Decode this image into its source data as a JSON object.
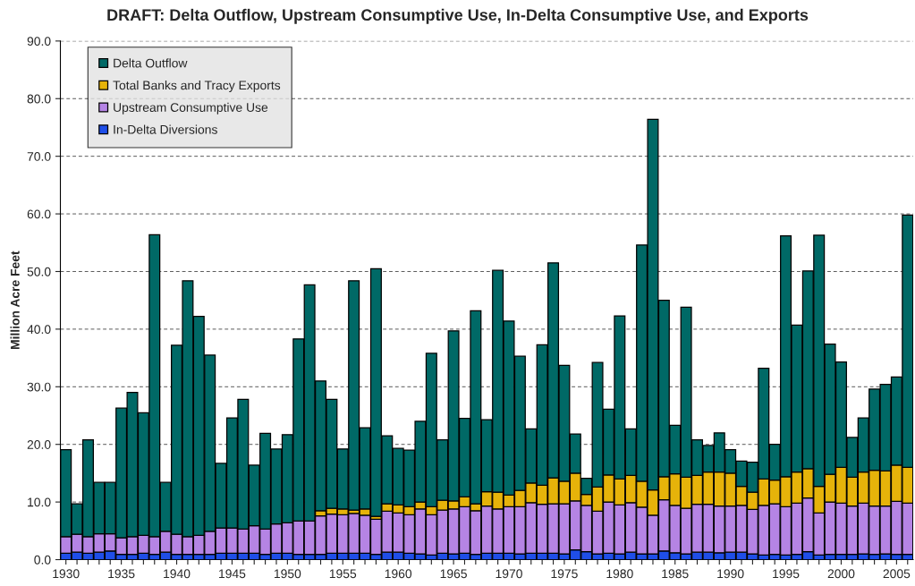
{
  "chart_data": {
    "type": "bar",
    "title": "DRAFT: Delta Outflow, Upstream Consumptive Use, In-Delta Consumptive Use, and Exports",
    "ylabel": "Million Acre Feet",
    "stacked": true,
    "categories": [
      "1930",
      null,
      null,
      null,
      null,
      "1935",
      null,
      null,
      null,
      null,
      "1940",
      null,
      null,
      null,
      null,
      "1945",
      null,
      null,
      null,
      null,
      "1950",
      null,
      null,
      null,
      null,
      "1955",
      null,
      null,
      null,
      null,
      "1960",
      null,
      null,
      null,
      null,
      "1965",
      null,
      null,
      null,
      null,
      "1970",
      null,
      null,
      null,
      null,
      "1975",
      null,
      null,
      null,
      null,
      "1980",
      null,
      null,
      null,
      null,
      "1985",
      null,
      null,
      null,
      null,
      "1990",
      null,
      null,
      null,
      null,
      "1995",
      null,
      null,
      null,
      null,
      "2000",
      null,
      null,
      null,
      null,
      "2005",
      null
    ],
    "series": [
      {
        "name": "In-Delta Diversions",
        "color": "#1f4ee8",
        "values": [
          1.1,
          1.3,
          1.1,
          1.3,
          1.5,
          0.9,
          0.9,
          1.1,
          0.9,
          1.3,
          0.9,
          0.9,
          0.9,
          0.9,
          1.1,
          1.1,
          1.1,
          1.1,
          0.9,
          1.1,
          1.1,
          0.9,
          0.9,
          0.9,
          1.1,
          1.1,
          1.1,
          1.1,
          0.9,
          1.3,
          1.3,
          1.1,
          1.0,
          0.8,
          1.1,
          1.0,
          1.1,
          0.9,
          1.1,
          1.1,
          1.1,
          1.0,
          1.1,
          1.1,
          1.1,
          1.0,
          1.7,
          1.4,
          1.0,
          1.1,
          1.0,
          1.3,
          1.0,
          1.0,
          1.5,
          1.2,
          1.0,
          1.3,
          1.3,
          1.2,
          1.3,
          1.3,
          1.0,
          0.8,
          0.9,
          0.8,
          0.9,
          1.4,
          0.8,
          0.9,
          0.9,
          0.9,
          1.0,
          0.9,
          1.0,
          0.9,
          0.9
        ]
      },
      {
        "name": "Upstream Consumptive Use",
        "color": "#b584e4",
        "values": [
          2.9,
          3.1,
          2.9,
          3.2,
          3.0,
          2.9,
          3.1,
          3.1,
          3.1,
          3.6,
          3.5,
          3.1,
          3.3,
          4.0,
          4.4,
          4.4,
          4.2,
          4.8,
          4.4,
          5.1,
          5.3,
          5.8,
          5.8,
          6.7,
          6.8,
          6.7,
          6.9,
          6.6,
          6.1,
          7.1,
          6.8,
          6.7,
          7.8,
          7.0,
          7.5,
          7.8,
          8.1,
          7.6,
          8.2,
          7.7,
          8.1,
          8.2,
          8.8,
          8.5,
          8.6,
          8.7,
          8.5,
          8.0,
          7.4,
          8.9,
          8.5,
          8.6,
          8.1,
          6.7,
          8.9,
          8.2,
          7.9,
          8.3,
          8.3,
          8.1,
          8.0,
          8.1,
          7.7,
          8.6,
          8.8,
          8.4,
          8.9,
          9.3,
          7.3,
          9.1,
          8.9,
          8.4,
          8.8,
          8.4,
          8.3,
          9.2,
          8.9
        ]
      },
      {
        "name": "Total Banks and Tracy Exports",
        "color": "#e6b30a",
        "values": [
          null,
          null,
          null,
          null,
          null,
          null,
          null,
          null,
          null,
          null,
          null,
          null,
          null,
          null,
          null,
          null,
          null,
          null,
          null,
          null,
          null,
          null,
          null,
          0.9,
          1.0,
          1.0,
          0.6,
          1.1,
          0.5,
          1.3,
          1.4,
          1.4,
          1.2,
          1.4,
          1.7,
          1.4,
          1.7,
          1.2,
          2.5,
          2.9,
          2.0,
          2.8,
          3.4,
          3.3,
          4.5,
          3.9,
          4.8,
          1.9,
          4.2,
          4.7,
          4.5,
          4.7,
          4.5,
          4.4,
          4.0,
          5.5,
          5.4,
          5.0,
          5.6,
          5.9,
          5.7,
          3.3,
          3.0,
          4.6,
          4.1,
          5.2,
          5.4,
          5.1,
          4.6,
          4.8,
          6.2,
          5.0,
          5.4,
          6.2,
          6.1,
          6.3,
          6.2
        ]
      },
      {
        "name": "Delta Outflow",
        "color": "#006966",
        "values": [
          15.1,
          5.3,
          16.8,
          8.9,
          8.9,
          22.5,
          25.0,
          21.3,
          52.4,
          8.5,
          32.8,
          44.4,
          38.0,
          30.6,
          11.2,
          19.1,
          22.5,
          10.5,
          16.6,
          13.0,
          15.3,
          31.6,
          41.0,
          22.5,
          18.9,
          10.4,
          39.8,
          14.1,
          43.0,
          11.8,
          9.8,
          9.8,
          14.0,
          26.6,
          10.5,
          29.5,
          13.6,
          33.5,
          12.5,
          38.5,
          30.2,
          23.3,
          9.4,
          24.4,
          37.3,
          20.1,
          6.8,
          2.8,
          21.6,
          11.4,
          28.3,
          8.1,
          41.0,
          64.3,
          30.6,
          8.4,
          29.5,
          6.2,
          4.6,
          6.8,
          4.1,
          4.4,
          5.2,
          19.2,
          6.2,
          41.8,
          25.5,
          34.3,
          43.6,
          22.6,
          18.3,
          6.9,
          9.4,
          14.1,
          15.0,
          15.3,
          43.8
        ]
      }
    ],
    "ylim": [
      0,
      90
    ],
    "yticks": [
      {
        "value": 0,
        "label": "0.0"
      },
      {
        "value": 10,
        "label": "10.0"
      },
      {
        "value": 20,
        "label": "20.0"
      },
      {
        "value": 30,
        "label": "30.0"
      },
      {
        "value": 40,
        "label": "40.0"
      },
      {
        "value": 50,
        "label": "50.0"
      },
      {
        "value": 60,
        "label": "60.0"
      },
      {
        "value": 70,
        "label": "70.0"
      },
      {
        "value": 80,
        "label": "80.0"
      },
      {
        "value": 90,
        "label": "90.0"
      }
    ],
    "grid": "y",
    "legend": "top left"
  }
}
